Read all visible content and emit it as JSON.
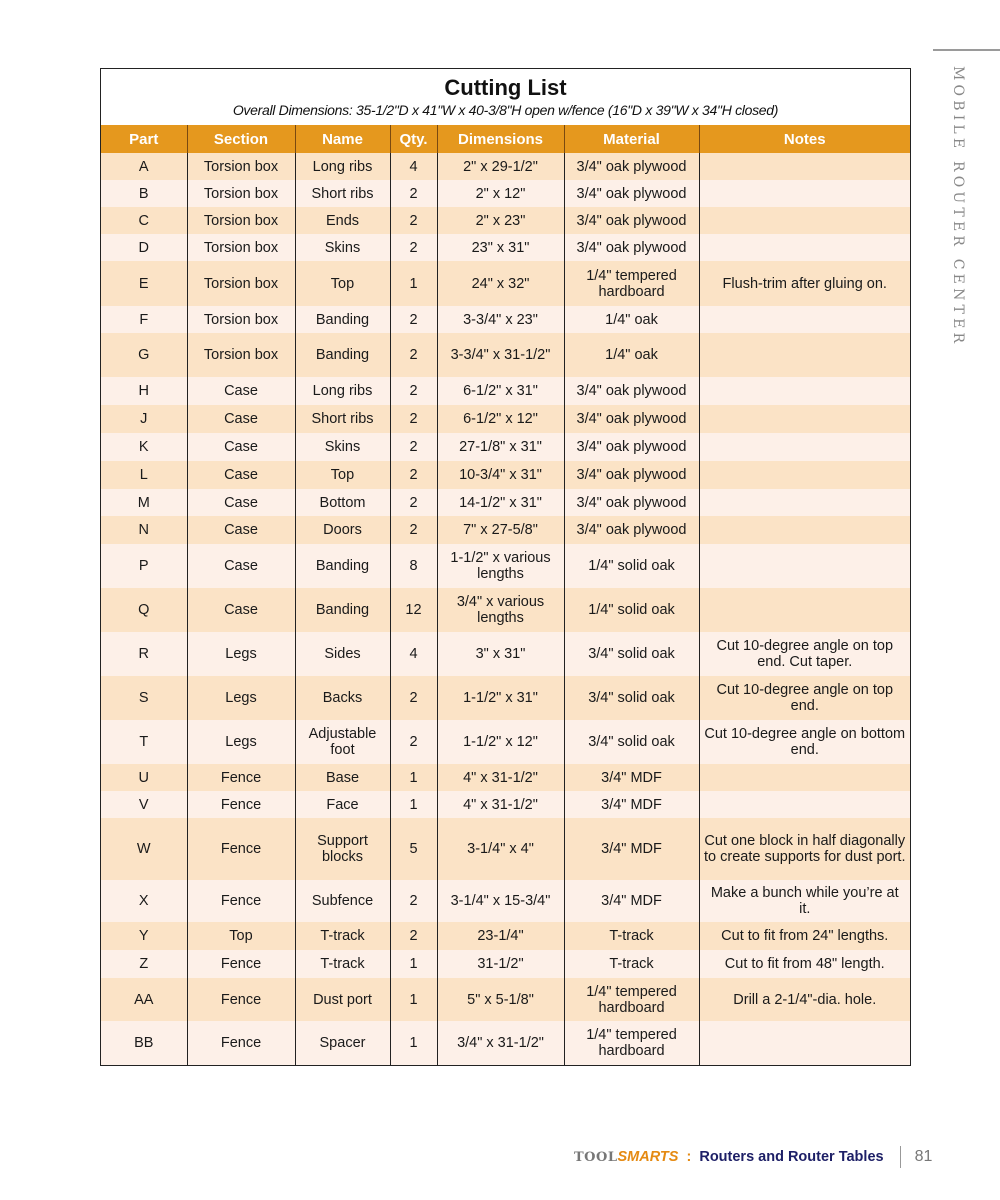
{
  "side_title": "MOBILE ROUTER CENTER",
  "cutting_list": {
    "title": "Cutting List",
    "subtitle": "Overall Dimensions: 35-1/2\"D x 41\"W x 40-3/8\"H open w/fence (16\"D x 39\"W x 34\"H closed)",
    "header_color": "#e5981e",
    "columns": [
      "Part",
      "Section",
      "Name",
      "Qty.",
      "Dimensions",
      "Material",
      "Notes"
    ],
    "rows": [
      [
        "A",
        "Torsion box",
        "Long ribs",
        "4",
        "2\" x 29-1/2\"",
        "3/4\" oak plywood",
        ""
      ],
      [
        "B",
        "Torsion box",
        "Short ribs",
        "2",
        "2\" x 12\"",
        "3/4\" oak plywood",
        ""
      ],
      [
        "C",
        "Torsion box",
        "Ends",
        "2",
        "2\" x 23\"",
        "3/4\" oak plywood",
        ""
      ],
      [
        "D",
        "Torsion box",
        "Skins",
        "2",
        "23\" x 31\"",
        "3/4\" oak plywood",
        ""
      ],
      [
        "E",
        "Torsion box",
        "Top",
        "1",
        "24\" x 32\"",
        "1/4\" tempered hardboard",
        "Flush-trim after gluing on."
      ],
      [
        "F",
        "Torsion box",
        "Banding",
        "2",
        "3-3/4\" x 23\"",
        "1/4\" oak",
        ""
      ],
      [
        "G",
        "Torsion box",
        "Banding",
        "2",
        "3-3/4\" x 31-1/2\"",
        "1/4\" oak",
        ""
      ],
      [
        "H",
        "Case",
        "Long ribs",
        "2",
        "6-1/2\" x 31\"",
        "3/4\" oak plywood",
        ""
      ],
      [
        "J",
        "Case",
        "Short ribs",
        "2",
        "6-1/2\" x 12\"",
        "3/4\" oak plywood",
        ""
      ],
      [
        "K",
        "Case",
        "Skins",
        "2",
        "27-1/8\" x 31\"",
        "3/4\" oak plywood",
        ""
      ],
      [
        "L",
        "Case",
        "Top",
        "2",
        "10-3/4\" x 31\"",
        "3/4\" oak plywood",
        ""
      ],
      [
        "M",
        "Case",
        "Bottom",
        "2",
        "14-1/2\" x 31\"",
        "3/4\" oak plywood",
        ""
      ],
      [
        "N",
        "Case",
        "Doors",
        "2",
        "7\" x 27-5/8\"",
        "3/4\" oak plywood",
        ""
      ],
      [
        "P",
        "Case",
        "Banding",
        "8",
        "1-1/2\" x various lengths",
        "1/4\" solid oak",
        ""
      ],
      [
        "Q",
        "Case",
        "Banding",
        "12",
        "3/4\" x various lengths",
        "1/4\" solid oak",
        ""
      ],
      [
        "R",
        "Legs",
        "Sides",
        "4",
        "3\" x 31\"",
        "3/4\" solid oak",
        "Cut 10-degree angle on top end. Cut taper."
      ],
      [
        "S",
        "Legs",
        "Backs",
        "2",
        "1-1/2\" x 31\"",
        "3/4\" solid oak",
        "Cut 10-degree angle on top end."
      ],
      [
        "T",
        "Legs",
        "Adjustable foot",
        "2",
        "1-1/2\" x 12\"",
        "3/4\" solid oak",
        "Cut 10-degree angle on bottom end."
      ],
      [
        "U",
        "Fence",
        "Base",
        "1",
        "4\" x 31-1/2\"",
        "3/4\" MDF",
        ""
      ],
      [
        "V",
        "Fence",
        "Face",
        "1",
        "4\" x 31-1/2\"",
        "3/4\" MDF",
        ""
      ],
      [
        "W",
        "Fence",
        "Support blocks",
        "5",
        "3-1/4\" x 4\"",
        "3/4\" MDF",
        "Cut one block in half diagonally to create supports for dust port."
      ],
      [
        "X",
        "Fence",
        "Subfence",
        "2",
        "3-1/4\" x 15-3/4\"",
        "3/4\" MDF",
        "Make a bunch while you’re at it."
      ],
      [
        "Y",
        "Top",
        "T-track",
        "2",
        "23-1/4\"",
        "T-track",
        "Cut to fit from 24\" lengths."
      ],
      [
        "Z",
        "Fence",
        "T-track",
        "1",
        "31-1/2\"",
        "T-track",
        "Cut to fit from 48\" length."
      ],
      [
        "AA",
        "Fence",
        "Dust port",
        "1",
        "5\" x 5-1/8\"",
        "1/4\" tempered hardboard",
        "Drill a 2-1/4\"-dia. hole."
      ],
      [
        "BB",
        "Fence",
        "Spacer",
        "1",
        "3/4\" x 31-1/2\"",
        "1/4\" tempered hardboard",
        ""
      ]
    ]
  },
  "footer": {
    "brand_tool": "TOOL",
    "brand_smarts": "SMARTS",
    "separator": ":",
    "book_title": "Routers and Router Tables",
    "page_number": "81",
    "brand_color": "#e58a12",
    "title_color": "#1d1f66"
  }
}
